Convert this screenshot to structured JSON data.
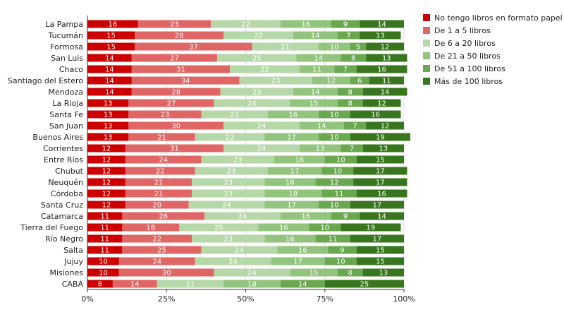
{
  "chart_data": {
    "type": "bar",
    "orientation": "horizontal",
    "stacked": true,
    "title": "",
    "xlabel": "",
    "ylabel": "",
    "xlim": [
      0,
      100
    ],
    "x_ticks": [
      "0%",
      "25%",
      "50%",
      "75%",
      "100%"
    ],
    "x_tick_values": [
      0,
      25,
      50,
      75,
      100
    ],
    "legend_position": "right",
    "categories": [
      "La Pampa",
      "Tucumán",
      "Formosa",
      "San Luis",
      "Chaco",
      "Santiago del Estero",
      "Mendoza",
      "La Rioja",
      "Santa Fe",
      "San Juan",
      "Buenos Aires",
      "Corrientes",
      "Entre Ríos",
      "Chubut",
      "Neuquén",
      "Córdoba",
      "Santa Cruz",
      "Catamarca",
      "Tierra del Fuego",
      "Río Negro",
      "Salta",
      "Jujuy",
      "Misiones",
      "CABA"
    ],
    "series": [
      {
        "name": "No tengo libros en formato papel",
        "color": "#cc0000",
        "values": [
          16,
          15,
          15,
          14,
          14,
          14,
          14,
          13,
          13,
          13,
          13,
          12,
          12,
          12,
          12,
          12,
          12,
          11,
          11,
          11,
          11,
          10,
          10,
          8
        ]
      },
      {
        "name": "De 1 a 5 libros",
        "color": "#e06666",
        "values": [
          23,
          28,
          37,
          27,
          31,
          34,
          28,
          27,
          23,
          30,
          21,
          31,
          24,
          22,
          21,
          21,
          20,
          26,
          18,
          22,
          25,
          24,
          30,
          14
        ]
      },
      {
        "name": "De 6 a 20 libros",
        "color": "#b6d7a8",
        "values": [
          22,
          22,
          21,
          25,
          22,
          23,
          23,
          24,
          21,
          24,
          22,
          24,
          23,
          23,
          23,
          23,
          24,
          24,
          25,
          23,
          24,
          24,
          24,
          21
        ]
      },
      {
        "name": "De 21 a 50 libros",
        "color": "#93c47d",
        "values": [
          16,
          14,
          10,
          14,
          11,
          12,
          14,
          15,
          16,
          14,
          17,
          13,
          16,
          17,
          16,
          18,
          17,
          16,
          16,
          16,
          16,
          17,
          15,
          18
        ]
      },
      {
        "name": "De 51 a 100 libros",
        "color": "#6aa84f",
        "values": [
          9,
          7,
          5,
          8,
          7,
          6,
          8,
          8,
          10,
          7,
          10,
          7,
          10,
          10,
          12,
          11,
          10,
          9,
          10,
          11,
          9,
          10,
          8,
          14
        ]
      },
      {
        "name": "Más de 100 libros",
        "color": "#38761d",
        "values": [
          14,
          13,
          12,
          13,
          16,
          11,
          14,
          12,
          16,
          12,
          19,
          13,
          15,
          17,
          17,
          16,
          17,
          14,
          19,
          17,
          15,
          15,
          13,
          25
        ]
      }
    ]
  }
}
